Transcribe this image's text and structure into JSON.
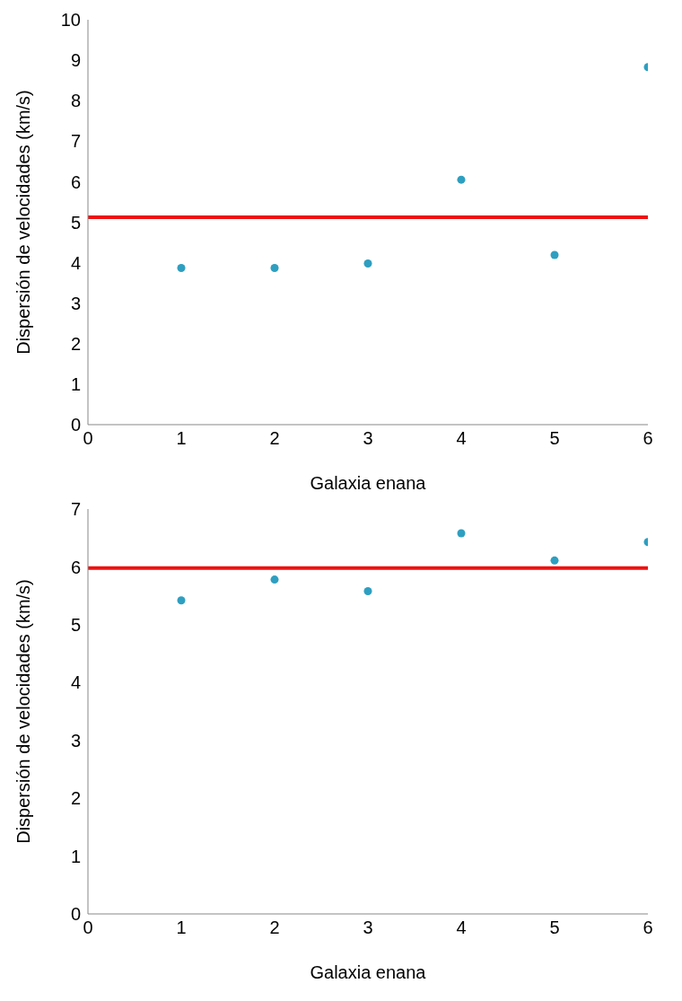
{
  "chart_data": [
    {
      "type": "scatter",
      "xlabel": "Galaxia enana",
      "ylabel": "Dispersión de velocidades (km/s)",
      "x": [
        1,
        2,
        3,
        4,
        5,
        6
      ],
      "series": [
        {
          "color": "#2e9fc0",
          "values": [
            3.87,
            3.87,
            3.98,
            6.05,
            4.19,
            8.83
          ]
        }
      ],
      "xlim": [
        0,
        6
      ],
      "xticks": [
        0,
        1,
        2,
        3,
        4,
        5,
        6
      ],
      "ylim": [
        0,
        10
      ],
      "yticks": [
        0,
        1,
        2,
        3,
        4,
        5,
        6,
        7,
        8,
        9,
        10
      ],
      "ref_lines": [
        {
          "axis": "y",
          "value": 5.12,
          "color": "#ee1111"
        }
      ],
      "grid": false,
      "legend": false,
      "marker": "circle"
    },
    {
      "type": "scatter",
      "xlabel": "Galaxia enana",
      "ylabel": "Dispersión de velocidades (km/s)",
      "x": [
        1,
        2,
        3,
        4,
        5,
        6
      ],
      "series": [
        {
          "color": "#2e9fc0",
          "values": [
            5.42,
            5.78,
            5.58,
            6.58,
            6.11,
            6.43
          ]
        }
      ],
      "xlim": [
        0,
        6
      ],
      "xticks": [
        0,
        1,
        2,
        3,
        4,
        5,
        6
      ],
      "ylim": [
        0,
        7
      ],
      "yticks": [
        0,
        1,
        2,
        3,
        4,
        5,
        6,
        7
      ],
      "ref_lines": [
        {
          "axis": "y",
          "value": 5.98,
          "color": "#ee1111"
        }
      ],
      "grid": false,
      "legend": false,
      "marker": "circle"
    }
  ]
}
